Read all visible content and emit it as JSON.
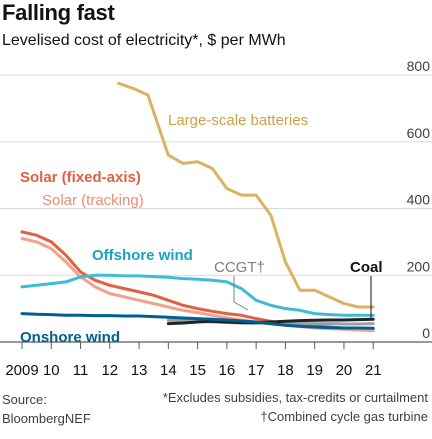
{
  "header": {
    "title": "Falling fast",
    "subtitle": "Levelised cost of electricity*, $ per MWh"
  },
  "footer": {
    "source_label": "Source:",
    "source_name": "BloombergNEF",
    "footnote_1": "*Excludes subsidies, tax-credits or curtailment",
    "footnote_2": "†Combined cycle gas turbine"
  },
  "chart_data": {
    "type": "line",
    "x_tick_labels": [
      "2009",
      "10",
      "11",
      "12",
      "13",
      "14",
      "15",
      "16",
      "17",
      "18",
      "19",
      "20",
      "21"
    ],
    "y_tick_labels": [
      "0",
      "200",
      "400",
      "600",
      "800"
    ],
    "ylim": [
      0,
      800
    ],
    "xlim": [
      2009,
      2021.3
    ],
    "y_axis_side": "right",
    "grid": "horizontal",
    "series": [
      {
        "name": "Large-scale batteries",
        "color": "#d9b45e",
        "x": [
          2012.3,
          2012.8,
          2013.3,
          2014.0,
          2014.5,
          2015.0,
          2015.5,
          2016.0,
          2016.5,
          2017.0,
          2017.5,
          2018.0,
          2018.5,
          2019.0,
          2019.5,
          2020.0,
          2020.5,
          2021.0
        ],
        "y": [
          775,
          760,
          740,
          560,
          535,
          540,
          520,
          460,
          440,
          440,
          380,
          240,
          155,
          155,
          135,
          115,
          105,
          105
        ]
      },
      {
        "name": "Solar (fixed-axis)",
        "color": "#e35f41",
        "x": [
          2009.0,
          2009.5,
          2010.0,
          2010.5,
          2011.0,
          2011.5,
          2012.0,
          2012.5,
          2013.0,
          2013.5,
          2014.0,
          2014.5,
          2015.0,
          2015.5,
          2016.0,
          2016.5,
          2017.0,
          2017.5,
          2018.0,
          2018.5,
          2019.0,
          2019.5,
          2020.0,
          2020.5,
          2021.0
        ],
        "y": [
          330,
          320,
          300,
          260,
          210,
          185,
          170,
          160,
          150,
          140,
          125,
          110,
          100,
          92,
          85,
          80,
          70,
          62,
          55,
          52,
          48,
          45,
          42,
          40,
          38
        ]
      },
      {
        "name": "Solar (tracking)",
        "color": "#f4a18c",
        "x": [
          2009.0,
          2009.5,
          2010.0,
          2010.5,
          2011.0,
          2011.5,
          2012.0,
          2012.5,
          2013.0,
          2013.5,
          2014.0,
          2014.5,
          2015.0,
          2015.5,
          2016.0,
          2016.5,
          2017.0,
          2017.5,
          2018.0,
          2018.5,
          2019.0,
          2019.5,
          2020.0,
          2020.5,
          2021.0
        ],
        "y": [
          310,
          300,
          280,
          240,
          195,
          165,
          145,
          135,
          125,
          115,
          105,
          95,
          88,
          80,
          72,
          66,
          60,
          54,
          50,
          46,
          42,
          40,
          38,
          36,
          34
        ]
      },
      {
        "name": "Offshore wind",
        "color": "#3ebcd2",
        "x": [
          2009.0,
          2009.5,
          2010.0,
          2010.5,
          2011.0,
          2011.5,
          2012.0,
          2012.5,
          2013.0,
          2013.5,
          2014.0,
          2014.5,
          2015.0,
          2015.5,
          2016.0,
          2016.5,
          2017.0,
          2017.5,
          2018.0,
          2018.5,
          2019.0,
          2019.5,
          2020.0,
          2020.5,
          2021.0
        ],
        "y": [
          165,
          170,
          175,
          180,
          195,
          200,
          200,
          198,
          198,
          196,
          194,
          190,
          188,
          185,
          180,
          160,
          125,
          110,
          100,
          95,
          85,
          82,
          80,
          80,
          80
        ]
      },
      {
        "name": "CCGT†",
        "color": "#9ba0a8",
        "x": [
          2014.0,
          2014.5,
          2015.0,
          2015.5,
          2016.0,
          2016.5,
          2017.0,
          2017.5,
          2018.0,
          2018.5,
          2019.0,
          2019.5,
          2020.0,
          2020.5,
          2021.0
        ],
        "y": [
          65,
          64,
          62,
          60,
          58,
          57,
          56,
          56,
          55,
          55,
          55,
          55,
          54,
          54,
          55
        ]
      },
      {
        "name": "Coal",
        "color": "#222222",
        "x": [
          2014.0,
          2014.5,
          2015.0,
          2015.5,
          2016.0,
          2016.5,
          2017.0,
          2017.5,
          2018.0,
          2018.5,
          2019.0,
          2019.5,
          2020.0,
          2020.5,
          2021.0
        ],
        "y": [
          55,
          57,
          60,
          62,
          60,
          58,
          58,
          60,
          62,
          64,
          65,
          66,
          66,
          67,
          68
        ]
      },
      {
        "name": "Onshore wind",
        "color": "#006092",
        "x": [
          2009.0,
          2009.5,
          2010.0,
          2010.5,
          2011.0,
          2011.5,
          2012.0,
          2012.5,
          2013.0,
          2013.5,
          2014.0,
          2014.5,
          2015.0,
          2015.5,
          2016.0,
          2016.5,
          2017.0,
          2017.5,
          2018.0,
          2018.5,
          2019.0,
          2019.5,
          2020.0,
          2020.5,
          2021.0
        ],
        "y": [
          85,
          83,
          82,
          80,
          80,
          79,
          79,
          78,
          78,
          76,
          74,
          72,
          70,
          68,
          66,
          63,
          60,
          55,
          50,
          47,
          45,
          43,
          42,
          42,
          41
        ]
      }
    ]
  }
}
